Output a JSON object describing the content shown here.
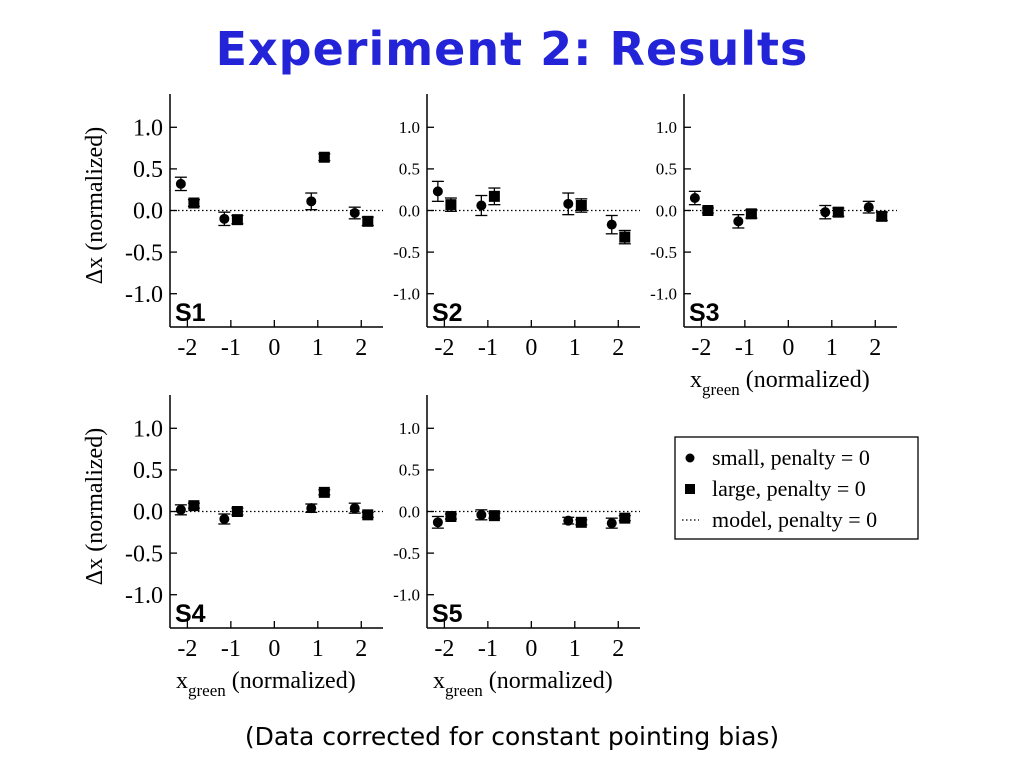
{
  "slide": {
    "title": "Experiment 2: Results",
    "footnote": "(Data corrected for constant pointing bias)"
  },
  "chart_data": [
    {
      "type": "scatter",
      "panel": "S1",
      "xlim": [
        -2.4,
        2.5
      ],
      "ylim": [
        -1.4,
        1.4
      ],
      "xticks": [
        "-2",
        "-1",
        "0",
        "1",
        "2"
      ],
      "yticks": [
        "1.0",
        "0.5",
        "0.0",
        "-0.5",
        "-1.0"
      ],
      "ylabel": "Δx (normalized)",
      "xlabel": "",
      "series": [
        {
          "name": "small, penalty = 0",
          "marker": "circle",
          "points": [
            {
              "x": -2.15,
              "y": 0.32,
              "err": 0.08
            },
            {
              "x": -1.15,
              "y": -0.1,
              "err": 0.08
            },
            {
              "x": 0.85,
              "y": 0.11,
              "err": 0.1
            },
            {
              "x": 1.85,
              "y": -0.03,
              "err": 0.07
            }
          ]
        },
        {
          "name": "large, penalty = 0",
          "marker": "square",
          "points": [
            {
              "x": -1.85,
              "y": 0.09,
              "err": 0.04
            },
            {
              "x": -0.85,
              "y": -0.11,
              "err": 0.05
            },
            {
              "x": 1.15,
              "y": 0.64,
              "err": 0.04
            },
            {
              "x": 2.15,
              "y": -0.13,
              "err": 0.05
            }
          ]
        }
      ]
    },
    {
      "type": "scatter",
      "panel": "S2",
      "xlim": [
        -2.4,
        2.5
      ],
      "ylim": [
        -1.4,
        1.4
      ],
      "xticks": [
        "-2",
        "-1",
        "0",
        "1",
        "2"
      ],
      "yticks": [
        "1.0",
        "0.5",
        "0.0",
        "-0.5",
        "-1.0"
      ],
      "ylabel": "",
      "xlabel": "",
      "series": [
        {
          "name": "small, penalty = 0",
          "marker": "circle",
          "points": [
            {
              "x": -2.15,
              "y": 0.23,
              "err": 0.12
            },
            {
              "x": -1.15,
              "y": 0.06,
              "err": 0.12
            },
            {
              "x": 0.85,
              "y": 0.08,
              "err": 0.13
            },
            {
              "x": 1.85,
              "y": -0.17,
              "err": 0.11
            }
          ]
        },
        {
          "name": "large, penalty = 0",
          "marker": "square",
          "points": [
            {
              "x": -1.85,
              "y": 0.07,
              "err": 0.08
            },
            {
              "x": -0.85,
              "y": 0.17,
              "err": 0.1
            },
            {
              "x": 1.15,
              "y": 0.06,
              "err": 0.08
            },
            {
              "x": 2.15,
              "y": -0.32,
              "err": 0.08
            }
          ]
        }
      ]
    },
    {
      "type": "scatter",
      "panel": "S3",
      "xlim": [
        -2.4,
        2.5
      ],
      "ylim": [
        -1.4,
        1.4
      ],
      "xticks": [
        "-2",
        "-1",
        "0",
        "1",
        "2"
      ],
      "yticks": [
        "1.0",
        "0.5",
        "0.0",
        "-0.5",
        "-1.0"
      ],
      "ylabel": "",
      "xlabel": "x_green (normalized)",
      "series": [
        {
          "name": "small, penalty = 0",
          "marker": "circle",
          "points": [
            {
              "x": -2.15,
              "y": 0.15,
              "err": 0.08
            },
            {
              "x": -1.15,
              "y": -0.13,
              "err": 0.08
            },
            {
              "x": 0.85,
              "y": -0.02,
              "err": 0.08
            },
            {
              "x": 1.85,
              "y": 0.04,
              "err": 0.07
            }
          ]
        },
        {
          "name": "large, penalty = 0",
          "marker": "square",
          "points": [
            {
              "x": -1.85,
              "y": 0.0,
              "err": 0.03
            },
            {
              "x": -0.85,
              "y": -0.04,
              "err": 0.05
            },
            {
              "x": 1.15,
              "y": -0.02,
              "err": 0.05
            },
            {
              "x": 2.15,
              "y": -0.07,
              "err": 0.05
            }
          ]
        }
      ]
    },
    {
      "type": "scatter",
      "panel": "S4",
      "xlim": [
        -2.4,
        2.5
      ],
      "ylim": [
        -1.4,
        1.4
      ],
      "xticks": [
        "-2",
        "-1",
        "0",
        "1",
        "2"
      ],
      "yticks": [
        "1.0",
        "0.5",
        "0.0",
        "-0.5",
        "-1.0"
      ],
      "ylabel": "Δx (normalized)",
      "xlabel": "x_green (normalized)",
      "series": [
        {
          "name": "small, penalty = 0",
          "marker": "circle",
          "points": [
            {
              "x": -2.15,
              "y": 0.02,
              "err": 0.06
            },
            {
              "x": -1.15,
              "y": -0.09,
              "err": 0.06
            },
            {
              "x": 0.85,
              "y": 0.04,
              "err": 0.05
            },
            {
              "x": 1.85,
              "y": 0.04,
              "err": 0.06
            }
          ]
        },
        {
          "name": "large, penalty = 0",
          "marker": "square",
          "points": [
            {
              "x": -1.85,
              "y": 0.07,
              "err": 0.03
            },
            {
              "x": -0.85,
              "y": 0.0,
              "err": 0.04
            },
            {
              "x": 1.15,
              "y": 0.23,
              "err": 0.03
            },
            {
              "x": 2.15,
              "y": -0.04,
              "err": 0.03
            }
          ]
        }
      ]
    },
    {
      "type": "scatter",
      "panel": "S5",
      "xlim": [
        -2.4,
        2.5
      ],
      "ylim": [
        -1.4,
        1.4
      ],
      "xticks": [
        "-2",
        "-1",
        "0",
        "1",
        "2"
      ],
      "yticks": [
        "1.0",
        "0.5",
        "0.0",
        "-0.5",
        "-1.0"
      ],
      "ylabel": "",
      "xlabel": "x_green (normalized)",
      "series": [
        {
          "name": "small, penalty = 0",
          "marker": "circle",
          "points": [
            {
              "x": -2.15,
              "y": -0.13,
              "err": 0.07
            },
            {
              "x": -1.15,
              "y": -0.04,
              "err": 0.06
            },
            {
              "x": 0.85,
              "y": -0.11,
              "err": 0.04
            },
            {
              "x": 1.85,
              "y": -0.14,
              "err": 0.06
            }
          ]
        },
        {
          "name": "large, penalty = 0",
          "marker": "square",
          "points": [
            {
              "x": -1.85,
              "y": -0.06,
              "err": 0.03
            },
            {
              "x": -0.85,
              "y": -0.05,
              "err": 0.03
            },
            {
              "x": 1.15,
              "y": -0.13,
              "err": 0.03
            },
            {
              "x": 2.15,
              "y": -0.08,
              "err": 0.03
            }
          ]
        }
      ]
    }
  ],
  "legend": {
    "placement": "right, lower row",
    "items": [
      {
        "marker": "circle",
        "label": "small, penalty = 0"
      },
      {
        "marker": "square",
        "label": "large, penalty = 0"
      },
      {
        "marker": "dotted-line",
        "label": "model, penalty = 0"
      }
    ]
  }
}
